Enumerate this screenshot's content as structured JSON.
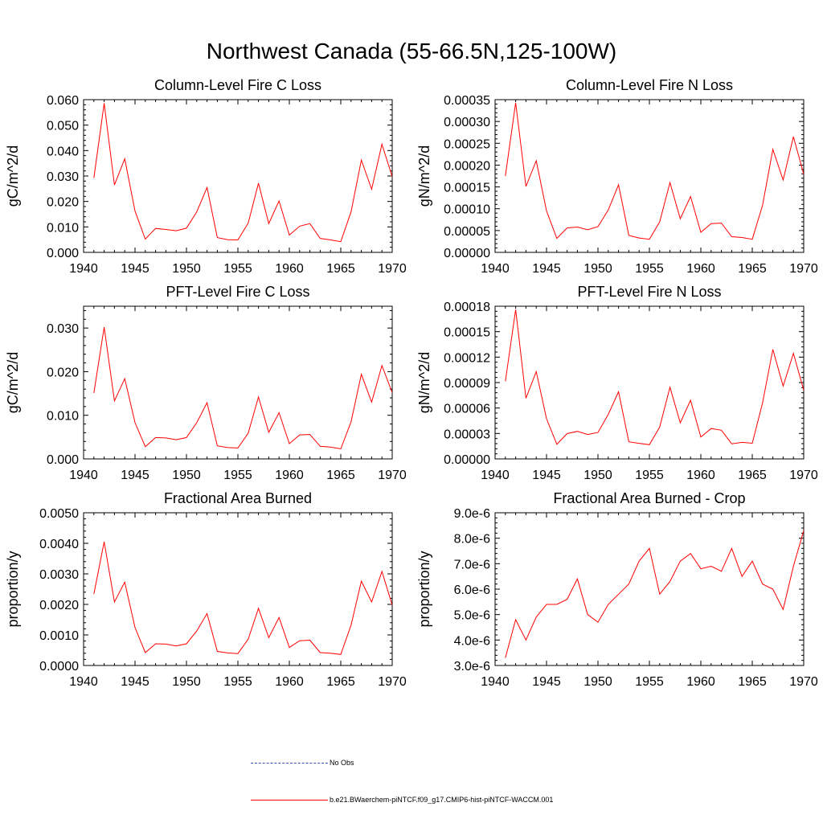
{
  "title": "Northwest Canada (55-66.5N,125-100W)",
  "legend": {
    "obs_label": "No Obs",
    "run_label": "b.e21.BWaerchem-piNTCF.f09_g17.CMIP6-hist-piNTCF-WACCM.001",
    "obs_color": "#3a4fb5",
    "run_color": "#ff0000"
  },
  "chart_data": [
    {
      "type": "line",
      "title": "Column-Level Fire C Loss",
      "xlabel": "",
      "ylabel": "gC/m^2/d",
      "xlim": [
        1940,
        1970
      ],
      "ylim": [
        0,
        0.06
      ],
      "xticks": [
        1940,
        1945,
        1950,
        1955,
        1960,
        1965,
        1970
      ],
      "xtick_labels": [
        "1940",
        "1945",
        "1950",
        "1955",
        "1960",
        "1965",
        "1970"
      ],
      "yticks": [
        0,
        0.01,
        0.02,
        0.03,
        0.04,
        0.05,
        0.06
      ],
      "ytick_labels": [
        "0.000",
        "0.010",
        "0.020",
        "0.030",
        "0.040",
        "0.050",
        "0.060"
      ],
      "grid": false,
      "series": [
        {
          "color": "#ff0000",
          "x": [
            1941,
            1942,
            1943,
            1944,
            1945,
            1946,
            1947,
            1948,
            1949,
            1950,
            1951,
            1952,
            1953,
            1954,
            1955,
            1956,
            1957,
            1958,
            1959,
            1960,
            1961,
            1962,
            1963,
            1964,
            1965,
            1966,
            1967,
            1968,
            1969,
            1970
          ],
          "y": [
            0.0292,
            0.0586,
            0.0265,
            0.0368,
            0.0162,
            0.0052,
            0.0094,
            0.009,
            0.0085,
            0.0095,
            0.0159,
            0.0255,
            0.0058,
            0.005,
            0.0049,
            0.0115,
            0.0272,
            0.0113,
            0.0202,
            0.0068,
            0.0103,
            0.0113,
            0.0055,
            0.0049,
            0.0042,
            0.0159,
            0.0363,
            0.0248,
            0.0425,
            0.0297
          ]
        }
      ]
    },
    {
      "type": "line",
      "title": "Column-Level Fire N Loss",
      "xlabel": "",
      "ylabel": "gN/m^2/d",
      "xlim": [
        1940,
        1970
      ],
      "ylim": [
        0,
        0.00035
      ],
      "xticks": [
        1940,
        1945,
        1950,
        1955,
        1960,
        1965,
        1970
      ],
      "xtick_labels": [
        "1940",
        "1945",
        "1950",
        "1955",
        "1960",
        "1965",
        "1970"
      ],
      "yticks": [
        0,
        5e-05,
        0.0001,
        0.00015,
        0.0002,
        0.00025,
        0.0003,
        0.00035
      ],
      "ytick_labels": [
        "0.00000",
        "0.00005",
        "0.00010",
        "0.00015",
        "0.00020",
        "0.00025",
        "0.00030",
        "0.00035"
      ],
      "grid": false,
      "series": [
        {
          "color": "#ff0000",
          "x": [
            1941,
            1942,
            1943,
            1944,
            1945,
            1946,
            1947,
            1948,
            1949,
            1950,
            1951,
            1952,
            1953,
            1954,
            1955,
            1956,
            1957,
            1958,
            1959,
            1960,
            1961,
            1962,
            1963,
            1964,
            1965,
            1966,
            1967,
            1968,
            1969,
            1970
          ],
          "y": [
            0.000175,
            0.000343,
            0.000151,
            0.00021,
            9.5e-05,
            3.2e-05,
            5.6e-05,
            5.8e-05,
            5.2e-05,
            5.9e-05,
            9.7e-05,
            0.000155,
            3.9e-05,
            3.3e-05,
            3e-05,
            7e-05,
            0.00016,
            7.7e-05,
            0.000128,
            4.6e-05,
            6.6e-05,
            6.7e-05,
            3.6e-05,
            3.4e-05,
            3e-05,
            0.000108,
            0.000236,
            0.000166,
            0.000265,
            0.000179
          ]
        }
      ]
    },
    {
      "type": "line",
      "title": "PFT-Level Fire C Loss",
      "xlabel": "",
      "ylabel": "gC/m^2/d",
      "xlim": [
        1940,
        1970
      ],
      "ylim": [
        0,
        0.035
      ],
      "xticks": [
        1940,
        1945,
        1950,
        1955,
        1960,
        1965,
        1970
      ],
      "xtick_labels": [
        "1940",
        "1945",
        "1950",
        "1955",
        "1960",
        "1965",
        "1970"
      ],
      "yticks": [
        0,
        0.01,
        0.02,
        0.03
      ],
      "ytick_labels": [
        "0.000",
        "0.010",
        "0.020",
        "0.030"
      ],
      "grid": false,
      "series": [
        {
          "color": "#ff0000",
          "x": [
            1941,
            1942,
            1943,
            1944,
            1945,
            1946,
            1947,
            1948,
            1949,
            1950,
            1951,
            1952,
            1953,
            1954,
            1955,
            1956,
            1957,
            1958,
            1959,
            1960,
            1961,
            1962,
            1963,
            1964,
            1965,
            1966,
            1967,
            1968,
            1969,
            1970
          ],
          "y": [
            0.0151,
            0.0302,
            0.0133,
            0.0184,
            0.0083,
            0.0028,
            0.0049,
            0.0048,
            0.0044,
            0.0049,
            0.0083,
            0.0129,
            0.003,
            0.0026,
            0.0025,
            0.0059,
            0.0142,
            0.0061,
            0.0106,
            0.0035,
            0.0055,
            0.0056,
            0.0029,
            0.0027,
            0.0023,
            0.0085,
            0.0194,
            0.013,
            0.0214,
            0.0152
          ]
        }
      ]
    },
    {
      "type": "line",
      "title": "PFT-Level Fire N Loss",
      "xlabel": "",
      "ylabel": "gN/m^2/d",
      "xlim": [
        1940,
        1970
      ],
      "ylim": [
        0,
        0.00018
      ],
      "xticks": [
        1940,
        1945,
        1950,
        1955,
        1960,
        1965,
        1970
      ],
      "xtick_labels": [
        "1940",
        "1945",
        "1950",
        "1955",
        "1960",
        "1965",
        "1970"
      ],
      "yticks": [
        0,
        3e-05,
        6e-05,
        9e-05,
        0.00012,
        0.00015,
        0.00018
      ],
      "ytick_labels": [
        "0.00000",
        "0.00003",
        "0.00006",
        "0.00009",
        "0.00012",
        "0.00015",
        "0.00018"
      ],
      "grid": false,
      "series": [
        {
          "color": "#ff0000",
          "x": [
            1941,
            1942,
            1943,
            1944,
            1945,
            1946,
            1947,
            1948,
            1949,
            1950,
            1951,
            1952,
            1953,
            1954,
            1955,
            1956,
            1957,
            1958,
            1959,
            1960,
            1961,
            1962,
            1963,
            1964,
            1965,
            1966,
            1967,
            1968,
            1969,
            1970
          ],
          "y": [
            9.15e-05,
            0.000176,
            7.15e-05,
            0.000103,
            4.75e-05,
            1.72e-05,
            2.98e-05,
            3.25e-05,
            2.88e-05,
            3.12e-05,
            5.25e-05,
            7.92e-05,
            2.02e-05,
            1.84e-05,
            1.68e-05,
            3.75e-05,
            8.45e-05,
            4.25e-05,
            6.92e-05,
            2.58e-05,
            3.58e-05,
            3.38e-05,
            1.78e-05,
            1.95e-05,
            1.85e-05,
            6.6e-05,
            0.000129,
            8.58e-05,
            0.0001245,
            8.1e-05
          ]
        }
      ]
    },
    {
      "type": "line",
      "title": "Fractional Area Burned",
      "xlabel": "",
      "ylabel": "proportion/y",
      "xlim": [
        1940,
        1970
      ],
      "ylim": [
        0,
        0.005
      ],
      "xticks": [
        1940,
        1945,
        1950,
        1955,
        1960,
        1965,
        1970
      ],
      "xtick_labels": [
        "1940",
        "1945",
        "1950",
        "1955",
        "1960",
        "1965",
        "1970"
      ],
      "yticks": [
        0,
        0.001,
        0.002,
        0.003,
        0.004,
        0.005
      ],
      "ytick_labels": [
        "0.0000",
        "0.0010",
        "0.0020",
        "0.0030",
        "0.0040",
        "0.0050"
      ],
      "grid": false,
      "series": [
        {
          "color": "#ff0000",
          "x": [
            1941,
            1942,
            1943,
            1944,
            1945,
            1946,
            1947,
            1948,
            1949,
            1950,
            1951,
            1952,
            1953,
            1954,
            1955,
            1956,
            1957,
            1958,
            1959,
            1960,
            1961,
            1962,
            1963,
            1964,
            1965,
            1966,
            1967,
            1968,
            1969,
            1970
          ],
          "y": [
            0.00234,
            0.00405,
            0.00208,
            0.00273,
            0.00124,
            0.00042,
            0.00071,
            0.0007,
            0.00064,
            0.00071,
            0.00113,
            0.0017,
            0.00046,
            0.00041,
            0.00039,
            0.00086,
            0.00187,
            0.00091,
            0.00157,
            0.00059,
            0.00081,
            0.00083,
            0.00042,
            0.0004,
            0.00036,
            0.00132,
            0.00276,
            0.00208,
            0.00308,
            0.00198
          ]
        }
      ]
    },
    {
      "type": "line",
      "title": "Fractional Area Burned - Crop",
      "xlabel": "",
      "ylabel": "proportion/y",
      "xlim": [
        1940,
        1970
      ],
      "ylim": [
        3e-06,
        9e-06
      ],
      "xticks": [
        1940,
        1945,
        1950,
        1955,
        1960,
        1965,
        1970
      ],
      "xtick_labels": [
        "1940",
        "1945",
        "1950",
        "1955",
        "1960",
        "1965",
        "1970"
      ],
      "yticks": [
        3e-06,
        4e-06,
        5e-06,
        6e-06,
        7e-06,
        8e-06,
        9e-06
      ],
      "ytick_labels": [
        "3.0e-6",
        "4.0e-6",
        "5.0e-6",
        "6.0e-6",
        "7.0e-6",
        "8.0e-6",
        "9.0e-6"
      ],
      "grid": false,
      "series": [
        {
          "color": "#ff0000",
          "x": [
            1941,
            1942,
            1943,
            1944,
            1945,
            1946,
            1947,
            1948,
            1949,
            1950,
            1951,
            1952,
            1953,
            1954,
            1955,
            1956,
            1957,
            1958,
            1959,
            1960,
            1961,
            1962,
            1963,
            1964,
            1965,
            1966,
            1967,
            1968,
            1969,
            1970
          ],
          "y": [
            3.3e-06,
            4.8e-06,
            4e-06,
            4.9e-06,
            5.4e-06,
            5.4e-06,
            5.6e-06,
            6.4e-06,
            5e-06,
            4.7e-06,
            5.4e-06,
            5.8e-06,
            6.2e-06,
            7.1e-06,
            7.6e-06,
            5.8e-06,
            6.3e-06,
            7.1e-06,
            7.4e-06,
            6.8e-06,
            6.9e-06,
            6.7e-06,
            7.6e-06,
            6.5e-06,
            7.1e-06,
            6.2e-06,
            6e-06,
            5.2e-06,
            6.9e-06,
            8.3e-06
          ]
        }
      ]
    }
  ]
}
